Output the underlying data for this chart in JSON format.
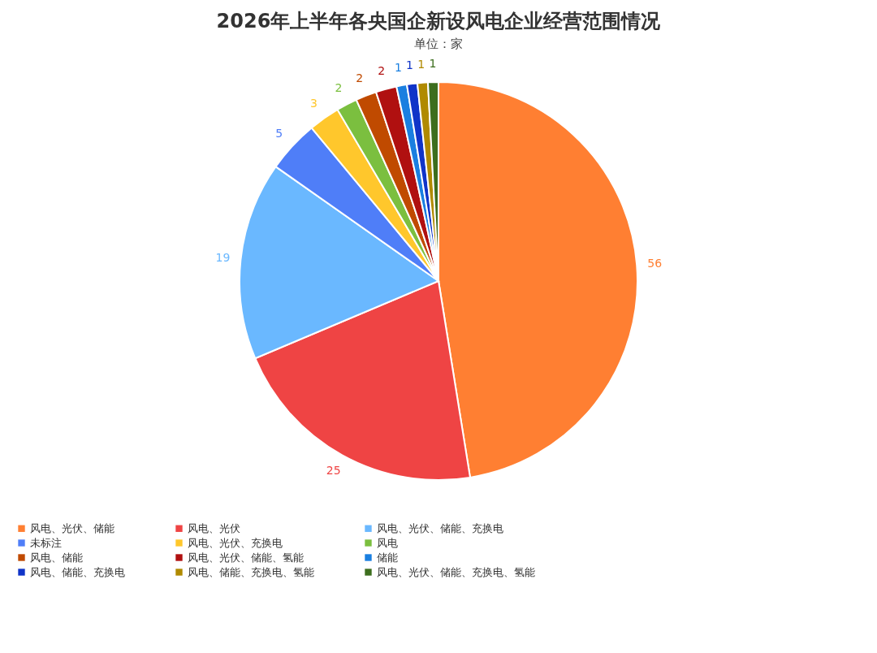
{
  "chart_data": {
    "type": "pie",
    "title": "2026年上半年各央国企新设风电企业经营范围情况",
    "subtitle": "单位：家",
    "categories": [
      "风电、光伏、储能",
      "风电、光伏",
      "风电、光伏、储能、充换电",
      "未标注",
      "风电、光伏、充换电",
      "风电",
      "风电、储能",
      "风电、光伏、储能、氢能",
      "储能",
      "风电、储能、充换电",
      "风电、储能、充换电、氢能",
      "风电、光伏、储能、充换电、氢能"
    ],
    "values": [
      56,
      25,
      19,
      5,
      3,
      2,
      2,
      2,
      1,
      1,
      1,
      1
    ],
    "colors": [
      "#ff7f32",
      "#ef4444",
      "#6ab8ff",
      "#4f7ef8",
      "#ffc72c",
      "#7bbf3f",
      "#c04a00",
      "#b01010",
      "#1a7fe0",
      "#1034c8",
      "#b08a00",
      "#3d6e1e"
    ],
    "data_labels": true,
    "legend": "bottom"
  }
}
